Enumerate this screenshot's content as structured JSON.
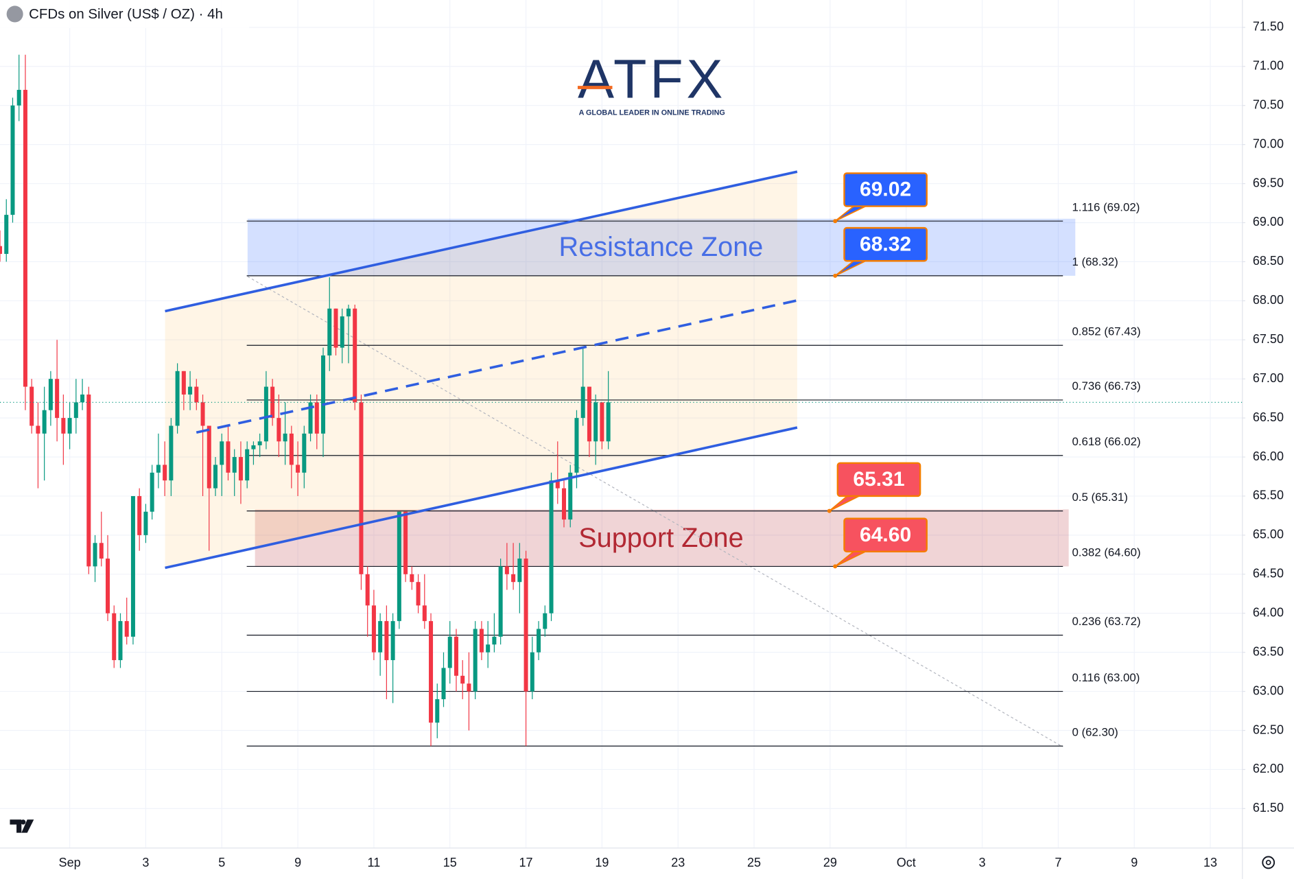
{
  "chart_data": {
    "type": "candlestick",
    "title": "CFDs on Silver (US$ / OZ) · 4h",
    "watermark": {
      "name": "ATFX",
      "tagline": "A GLOBAL LEADER IN ONLINE TRADING"
    },
    "up_color": "#089981",
    "down_color": "#f23645",
    "grid": true,
    "xlim": [
      1,
      197
    ],
    "ylim": [
      61.0,
      71.85
    ],
    "xticks": [
      {
        "value": 12,
        "label": "Sep"
      },
      {
        "value": 24,
        "label": "3"
      },
      {
        "value": 36,
        "label": "5"
      },
      {
        "value": 48,
        "label": "9"
      },
      {
        "value": 60,
        "label": "11"
      },
      {
        "value": 72,
        "label": "15"
      },
      {
        "value": 84,
        "label": "17"
      },
      {
        "value": 96,
        "label": "19"
      },
      {
        "value": 108,
        "label": "23"
      },
      {
        "value": 120,
        "label": "25"
      },
      {
        "value": 132,
        "label": "29"
      },
      {
        "value": 144,
        "label": "Oct"
      },
      {
        "value": 156,
        "label": "3"
      },
      {
        "value": 168,
        "label": "7"
      },
      {
        "value": 180,
        "label": "9"
      },
      {
        "value": 192,
        "label": "13"
      }
    ],
    "yticks": [
      {
        "value": 71.5,
        "label": "71.50"
      },
      {
        "value": 71.0,
        "label": "71.00"
      },
      {
        "value": 70.5,
        "label": "70.50"
      },
      {
        "value": 70.0,
        "label": "70.00"
      },
      {
        "value": 69.5,
        "label": "69.50"
      },
      {
        "value": 69.0,
        "label": "69.00"
      },
      {
        "value": 68.5,
        "label": "68.50"
      },
      {
        "value": 68.0,
        "label": "68.00"
      },
      {
        "value": 67.5,
        "label": "67.50"
      },
      {
        "value": 67.0,
        "label": "67.00"
      },
      {
        "value": 66.5,
        "label": "66.50"
      },
      {
        "value": 66.0,
        "label": "66.00"
      },
      {
        "value": 65.5,
        "label": "65.50"
      },
      {
        "value": 65.0,
        "label": "65.00"
      },
      {
        "value": 64.5,
        "label": "64.50"
      },
      {
        "value": 64.0,
        "label": "64.00"
      },
      {
        "value": 63.5,
        "label": "63.50"
      },
      {
        "value": 63.0,
        "label": "63.00"
      },
      {
        "value": 62.5,
        "label": "62.50"
      },
      {
        "value": 62.0,
        "label": "62.00"
      },
      {
        "value": 61.5,
        "label": "61.50"
      }
    ],
    "x": [
      1,
      2,
      3,
      4,
      5,
      6,
      7,
      8,
      9,
      10,
      11,
      12,
      13,
      14,
      15,
      16,
      17,
      18,
      19,
      20,
      21,
      22,
      23,
      24,
      25,
      26,
      27,
      28,
      29,
      30,
      31,
      32,
      33,
      34,
      35,
      36,
      37,
      38,
      39,
      40,
      41,
      42,
      43,
      44,
      45,
      46,
      47,
      48,
      49,
      50,
      51,
      52,
      53,
      54,
      55,
      56,
      57,
      58,
      59,
      60,
      61,
      62,
      63,
      64,
      65,
      66,
      67,
      68,
      69,
      70,
      71,
      72,
      73,
      74,
      75,
      76,
      77,
      78,
      79,
      80,
      81,
      82,
      83,
      84,
      85,
      86,
      87,
      88,
      89,
      90,
      91,
      92,
      93,
      94,
      95,
      96,
      97
    ],
    "open": [
      68.7,
      68.6,
      69.1,
      70.5,
      70.7,
      66.9,
      66.4,
      66.3,
      66.6,
      67.0,
      66.5,
      66.3,
      66.5,
      66.7,
      66.8,
      64.6,
      64.9,
      64.7,
      64.0,
      63.4,
      63.9,
      63.7,
      65.5,
      65.0,
      65.3,
      65.8,
      65.9,
      65.7,
      66.4,
      67.1,
      66.8,
      66.9,
      66.7,
      66.4,
      65.6,
      65.9,
      66.2,
      65.8,
      66.0,
      65.7,
      66.1,
      66.15,
      66.2,
      66.9,
      66.5,
      66.2,
      66.3,
      65.9,
      65.8,
      66.3,
      66.7,
      66.3,
      67.3,
      67.9,
      67.4,
      67.8,
      67.9,
      66.7,
      64.5,
      64.1,
      63.5,
      63.9,
      63.4,
      63.9,
      65.3,
      64.5,
      64.4,
      64.1,
      63.9,
      62.6,
      62.9,
      63.3,
      63.7,
      63.2,
      63.1,
      63.0,
      63.8,
      63.5,
      63.6,
      63.7,
      64.6,
      64.5,
      64.4,
      64.7,
      63.0,
      63.5,
      63.8,
      64.0,
      65.7,
      65.6,
      65.2,
      65.8,
      66.5,
      66.9,
      66.2,
      66.7,
      66.2
    ],
    "high": [
      68.9,
      69.3,
      70.6,
      71.15,
      71.15,
      67.0,
      66.7,
      66.9,
      67.1,
      67.5,
      66.8,
      66.7,
      67.0,
      67.0,
      66.9,
      65.0,
      65.3,
      65.0,
      64.1,
      64.0,
      64.2,
      65.5,
      65.6,
      65.4,
      65.9,
      66.3,
      66.2,
      66.5,
      67.2,
      67.1,
      67.1,
      67.0,
      66.8,
      66.4,
      66.0,
      66.3,
      66.4,
      66.1,
      66.2,
      66.2,
      66.2,
      66.3,
      67.1,
      67.0,
      66.8,
      66.7,
      66.4,
      66.2,
      66.4,
      66.8,
      66.8,
      67.4,
      68.3,
      67.9,
      67.9,
      67.95,
      67.95,
      66.8,
      64.6,
      64.3,
      64.0,
      64.1,
      64.0,
      65.3,
      65.3,
      64.6,
      64.5,
      64.5,
      64.0,
      63.1,
      63.5,
      63.9,
      63.8,
      63.4,
      63.5,
      63.9,
      63.9,
      63.9,
      64.0,
      64.7,
      64.9,
      64.9,
      64.9,
      64.8,
      63.7,
      63.9,
      64.1,
      65.8,
      66.2,
      65.7,
      65.9,
      66.6,
      67.4,
      66.9,
      66.8,
      66.7,
      67.1
    ],
    "low": [
      68.5,
      68.5,
      69.0,
      70.3,
      66.6,
      66.3,
      65.6,
      65.7,
      66.4,
      66.2,
      65.9,
      66.1,
      66.3,
      66.6,
      64.5,
      64.4,
      64.6,
      63.9,
      63.3,
      63.3,
      63.6,
      63.6,
      64.8,
      64.9,
      65.2,
      65.6,
      65.5,
      65.5,
      66.3,
      66.6,
      66.6,
      66.6,
      65.5,
      64.8,
      65.5,
      65.5,
      65.7,
      65.5,
      65.4,
      65.6,
      65.9,
      66.0,
      66.1,
      66.4,
      66.0,
      65.9,
      65.6,
      65.5,
      65.6,
      66.2,
      66.1,
      66.0,
      67.1,
      67.3,
      67.2,
      67.2,
      66.6,
      64.3,
      63.7,
      63.4,
      63.2,
      62.9,
      62.85,
      63.8,
      64.4,
      64.3,
      64.0,
      63.8,
      62.3,
      62.4,
      62.8,
      63.1,
      63.0,
      62.9,
      62.5,
      62.9,
      63.4,
      63.3,
      63.5,
      63.6,
      64.3,
      64.3,
      64.0,
      62.3,
      62.9,
      63.4,
      63.7,
      63.9,
      65.4,
      65.1,
      65.1,
      65.6,
      66.4,
      66.0,
      65.9,
      66.1,
      66.1
    ],
    "close": [
      68.6,
      69.1,
      70.5,
      70.7,
      66.9,
      66.4,
      66.3,
      66.6,
      67.0,
      66.5,
      66.3,
      66.5,
      66.7,
      66.8,
      64.6,
      64.9,
      64.7,
      64.0,
      63.4,
      63.9,
      63.7,
      65.5,
      65.0,
      65.3,
      65.8,
      65.9,
      65.7,
      66.4,
      67.1,
      66.8,
      66.9,
      66.7,
      66.4,
      65.6,
      65.9,
      66.2,
      65.8,
      66.0,
      65.7,
      66.1,
      66.15,
      66.2,
      66.9,
      66.5,
      66.2,
      66.3,
      65.9,
      65.8,
      66.3,
      66.7,
      66.3,
      67.3,
      67.9,
      67.4,
      67.8,
      67.9,
      66.7,
      64.5,
      64.1,
      63.5,
      63.9,
      63.4,
      63.9,
      65.3,
      64.5,
      64.4,
      64.1,
      63.9,
      62.6,
      62.9,
      63.3,
      63.7,
      63.2,
      63.1,
      63.0,
      63.8,
      63.5,
      63.6,
      63.7,
      64.6,
      64.5,
      64.4,
      64.7,
      63.0,
      63.5,
      63.8,
      64.0,
      65.7,
      65.6,
      65.2,
      65.8,
      66.5,
      66.9,
      66.2,
      66.7,
      66.2,
      66.7
    ],
    "fib_levels": [
      {
        "label": "1.116 (69.02)",
        "value": 69.02
      },
      {
        "label": "1 (68.32)",
        "value": 68.32
      },
      {
        "label": "0.852 (67.43)",
        "value": 67.43
      },
      {
        "label": "0.736 (66.73)",
        "value": 66.73
      },
      {
        "label": "0.618 (66.02)",
        "value": 66.02
      },
      {
        "label": "0.5 (65.31)",
        "value": 65.31
      },
      {
        "label": "0.382 (64.60)",
        "value": 64.6
      },
      {
        "label": "0.236 (63.72)",
        "value": 63.72
      },
      {
        "label": "0.116 (63.00)",
        "value": 63.0
      },
      {
        "label": "0 (62.30)",
        "value": 62.3
      }
    ],
    "zones": [
      {
        "label": "Resistance Zone",
        "range": [
          68.32,
          69.05
        ],
        "color": "#2962ff"
      },
      {
        "label": "Support Zone",
        "range": [
          64.6,
          65.33
        ],
        "color": "#b22833"
      }
    ],
    "callouts": [
      {
        "label": "69.02",
        "value": 69.02,
        "color": "#2962ff"
      },
      {
        "label": "68.32",
        "value": 68.32,
        "color": "#2962ff"
      },
      {
        "label": "65.31",
        "value": 65.31,
        "color": "#f7525f"
      },
      {
        "label": "64.60",
        "value": 64.6,
        "color": "#f7525f"
      }
    ]
  }
}
